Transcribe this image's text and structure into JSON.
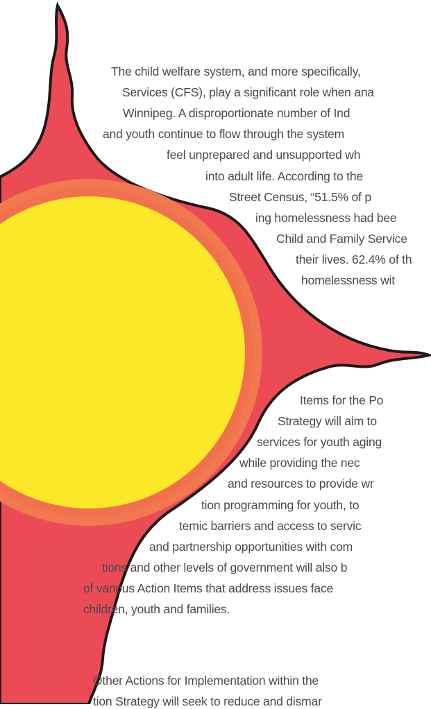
{
  "paragraphs": [
    {
      "lines": [
        "The child welfare system, and more specifically,",
        "Services (CFS), play a significant role when ana",
        "Winnipeg. A disproportionate number of Ind",
        "and youth continue to flow through the system",
        "feel unprepared and unsupported wh",
        "into adult life. According to the",
        "Street Census, “51.5% of p",
        "ing homelessness had bee",
        "Child and Family Service",
        "their lives. 62.4% of th",
        "homelessness wit"
      ]
    },
    {
      "lines": [
        "Items for the Po",
        "Strategy will aim to",
        "services for youth aging",
        "while providing the nec",
        "and resources to provide wr",
        "tion programming for youth, to",
        "temic barriers and access to servic",
        "and partnership opportunities with com",
        "tions and other levels of government will also b",
        "of various Action Items that address issues face",
        "children, youth and families."
      ]
    },
    {
      "lines": [
        "Other Actions for Implementation within the",
        "tion Strategy will seek to reduce and dismar"
      ]
    }
  ]
}
